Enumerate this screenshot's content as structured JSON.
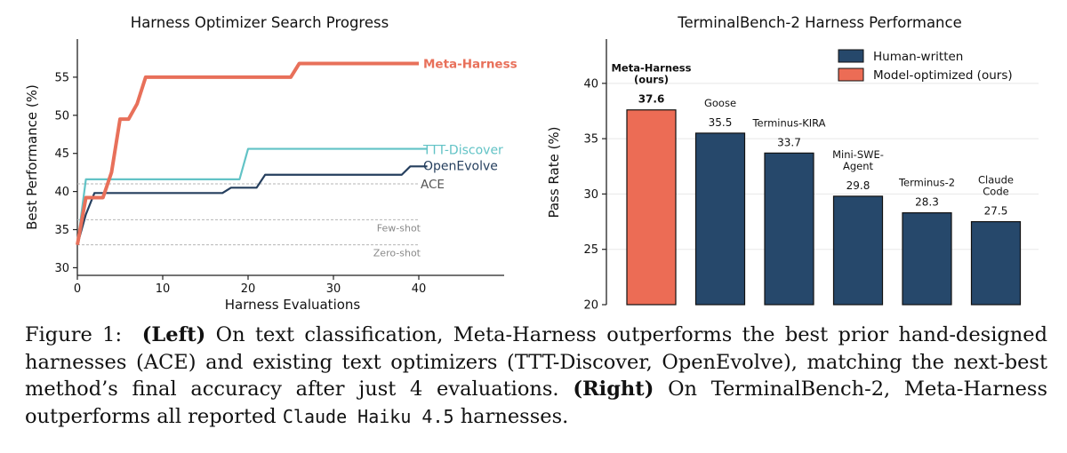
{
  "colors": {
    "meta": "#E8705A",
    "ttt": "#62C3C6",
    "openevolve": "#253F5E",
    "human": "#26486B",
    "model": "#EC6C55",
    "ref": "#8A8A8A"
  },
  "chart_data": [
    {
      "type": "line",
      "title": "Harness Optimizer Search Progress",
      "xlabel": "Harness Evaluations",
      "ylabel": "Best Performance (%)",
      "xlim": [
        0,
        50
      ],
      "ylim": [
        29,
        60
      ],
      "xticks": [
        0,
        10,
        20,
        30,
        40
      ],
      "yticks": [
        30,
        35,
        40,
        45,
        50,
        55
      ],
      "grid": false,
      "series": [
        {
          "name": "Meta-Harness",
          "color_key": "meta",
          "points": [
            [
              0,
              33
            ],
            [
              1,
              39.2
            ],
            [
              2,
              39.2
            ],
            [
              3,
              39.2
            ],
            [
              4,
              42.5
            ],
            [
              5,
              49.5
            ],
            [
              6,
              49.5
            ],
            [
              7,
              51.5
            ],
            [
              8,
              55
            ],
            [
              25,
              55
            ],
            [
              26,
              56.8
            ],
            [
              40,
              56.8
            ]
          ]
        },
        {
          "name": "TTT-Discover",
          "color_key": "ttt",
          "points": [
            [
              0,
              33
            ],
            [
              1,
              41.6
            ],
            [
              19,
              41.6
            ],
            [
              20,
              45.6
            ],
            [
              41,
              45.6
            ]
          ]
        },
        {
          "name": "OpenEvolve",
          "color_key": "openevolve",
          "points": [
            [
              0,
              33
            ],
            [
              1,
              37
            ],
            [
              2,
              39.8
            ],
            [
              17,
              39.8
            ],
            [
              18,
              40.5
            ],
            [
              21,
              40.5
            ],
            [
              22,
              42.2
            ],
            [
              38,
              42.2
            ],
            [
              39,
              43.3
            ],
            [
              41,
              43.3
            ]
          ]
        }
      ],
      "reference_lines": [
        {
          "name": "ACE",
          "y": 41,
          "labeled": true
        },
        {
          "name": "Few-shot",
          "y": 36.3,
          "labeled": true
        },
        {
          "name": "Zero-shot",
          "y": 33,
          "labeled": true
        }
      ]
    },
    {
      "type": "bar",
      "title": "TerminalBench-2 Harness Performance",
      "xlabel": "",
      "ylabel": "Pass Rate (%)",
      "ylim": [
        20,
        44
      ],
      "yticks": [
        20,
        25,
        30,
        35,
        40
      ],
      "grid": true,
      "legend_position": "top-right",
      "legend": [
        {
          "label": "Human-written",
          "color_key": "human"
        },
        {
          "label": "Model-optimized (ours)",
          "color_key": "model"
        }
      ],
      "categories": [
        {
          "name_lines": [
            "Meta-Harness",
            "(ours)"
          ],
          "value": 37.6,
          "value_label": "37.6",
          "group": "model",
          "bold": true
        },
        {
          "name_lines": [
            "Goose"
          ],
          "value": 35.5,
          "value_label": "35.5",
          "group": "human",
          "bold": false
        },
        {
          "name_lines": [
            "Terminus-KIRA"
          ],
          "value": 33.7,
          "value_label": "33.7",
          "group": "human",
          "bold": false
        },
        {
          "name_lines": [
            "Mini-SWE-",
            "Agent"
          ],
          "value": 29.8,
          "value_label": "29.8",
          "group": "human",
          "bold": false
        },
        {
          "name_lines": [
            "Terminus-2"
          ],
          "value": 28.3,
          "value_label": "28.3",
          "group": "human",
          "bold": false
        },
        {
          "name_lines": [
            "Claude",
            "Code"
          ],
          "value": 27.5,
          "value_label": "27.5",
          "group": "human",
          "bold": false
        }
      ]
    }
  ],
  "caption": {
    "figure_label": "Figure 1:",
    "left_label": "(Left)",
    "left_text": "On text classification, Meta-Harness outperforms the best prior hand-designed harnesses (ACE) and existing text optimizers (TTT-Discover, OpenEvolve), matching the next-best method’s final accuracy after just 4 evaluations.",
    "right_label": "(Right)",
    "right_text_before": "On TerminalBench-2, Meta-Harness outperforms all reported",
    "model_name": "Claude Haiku 4.5",
    "right_text_after": "harnesses."
  }
}
